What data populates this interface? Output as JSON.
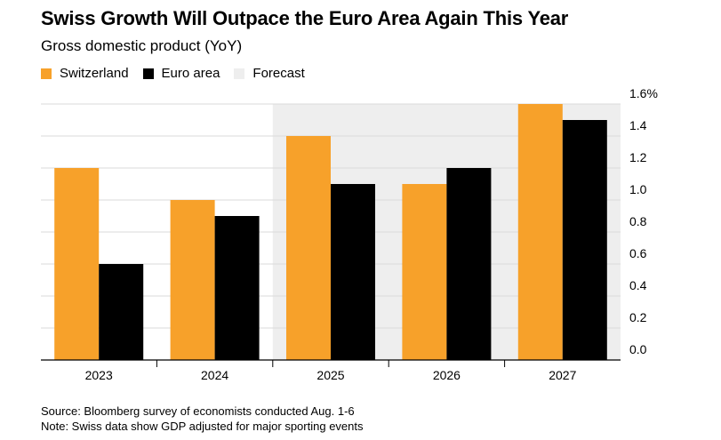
{
  "header": {
    "title": "Swiss Growth Will Outpace the Euro Area Again This Year",
    "subtitle": "Gross domestic product (YoY)"
  },
  "legend": [
    {
      "label": "Switzerland",
      "color": "#f7a12a"
    },
    {
      "label": "Euro area",
      "color": "#000000"
    },
    {
      "label": "Forecast",
      "color": "#eeeeee"
    }
  ],
  "footer": {
    "source": "Source: Bloomberg survey of economists conducted Aug. 1-6",
    "note": "Note: Swiss data show GDP adjusted for major sporting events"
  },
  "chart_data": {
    "type": "bar",
    "categories": [
      "2023",
      "2024",
      "2025",
      "2026",
      "2027"
    ],
    "series": [
      {
        "name": "Switzerland",
        "values": [
          1.2,
          1.0,
          1.4,
          1.1,
          1.6
        ],
        "color": "#f7a12a"
      },
      {
        "name": "Euro area",
        "values": [
          0.6,
          0.9,
          1.1,
          1.2,
          1.5
        ],
        "color": "#000000"
      }
    ],
    "forecast_categories": [
      "2025",
      "2026",
      "2027"
    ],
    "forecast_label": "Forecast",
    "ylim": [
      0,
      1.6
    ],
    "yticks": [
      "0.0",
      "0.2",
      "0.4",
      "0.6",
      "0.8",
      "1.0",
      "1.2",
      "1.4",
      "1.6%"
    ],
    "y_axis_position": "right",
    "grid": true
  }
}
